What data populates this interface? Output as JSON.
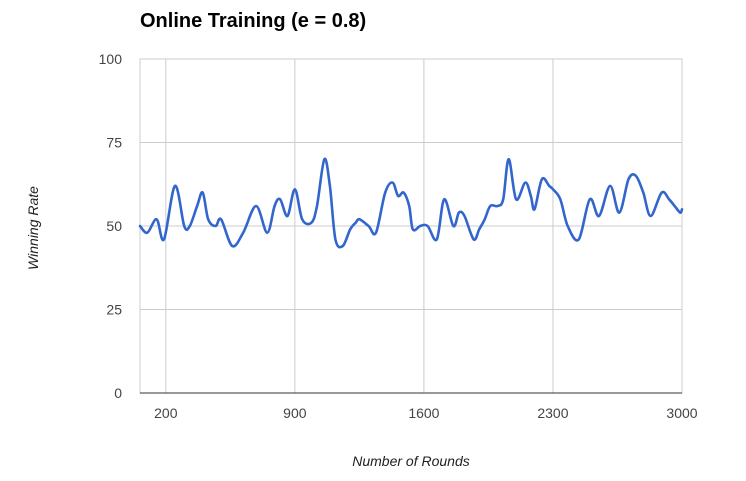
{
  "chart_data": {
    "type": "line",
    "title": "Online Training (e = 0.8)",
    "xlabel": "Number of Rounds",
    "ylabel": "Winning Rate",
    "xlim": [
      60,
      3000
    ],
    "ylim": [
      0,
      100
    ],
    "x_ticks": [
      200,
      900,
      1600,
      2300,
      3000
    ],
    "y_ticks": [
      0,
      25,
      50,
      75,
      100
    ],
    "grid": true,
    "legend": "none",
    "line_color": "#3366cc",
    "series": [
      {
        "x": [
          60,
          100,
          150,
          190,
          250,
          300,
          330,
          370,
          400,
          430,
          470,
          500,
          560,
          620,
          690,
          750,
          790,
          820,
          860,
          900,
          940,
          990,
          1020,
          1060,
          1090,
          1120,
          1160,
          1200,
          1230,
          1250,
          1300,
          1340,
          1390,
          1430,
          1460,
          1490,
          1520,
          1540,
          1580,
          1620,
          1670,
          1710,
          1760,
          1790,
          1820,
          1870,
          1900,
          1930,
          1960,
          2000,
          2030,
          2060,
          2100,
          2150,
          2180,
          2200,
          2240,
          2280,
          2300,
          2340,
          2380,
          2440,
          2500,
          2550,
          2610,
          2660,
          2710,
          2750,
          2790,
          2830,
          2890,
          2930,
          2960,
          2990,
          3000
        ],
        "y": [
          50,
          48,
          52,
          46,
          62,
          50,
          50,
          56,
          60,
          52,
          50,
          52,
          44,
          48,
          56,
          48,
          56,
          58,
          53,
          61,
          52,
          51,
          56,
          70,
          62,
          46,
          44,
          49,
          51,
          52,
          50,
          48,
          60,
          63,
          59,
          60,
          56,
          49,
          50,
          50,
          46,
          58,
          50,
          54,
          53,
          46,
          49,
          52,
          56,
          56,
          58,
          70,
          58,
          63,
          59,
          55,
          64,
          62,
          61,
          58,
          50,
          46,
          58,
          53,
          62,
          54,
          64,
          65,
          60,
          53,
          60,
          58,
          56,
          54,
          55
        ]
      }
    ]
  }
}
